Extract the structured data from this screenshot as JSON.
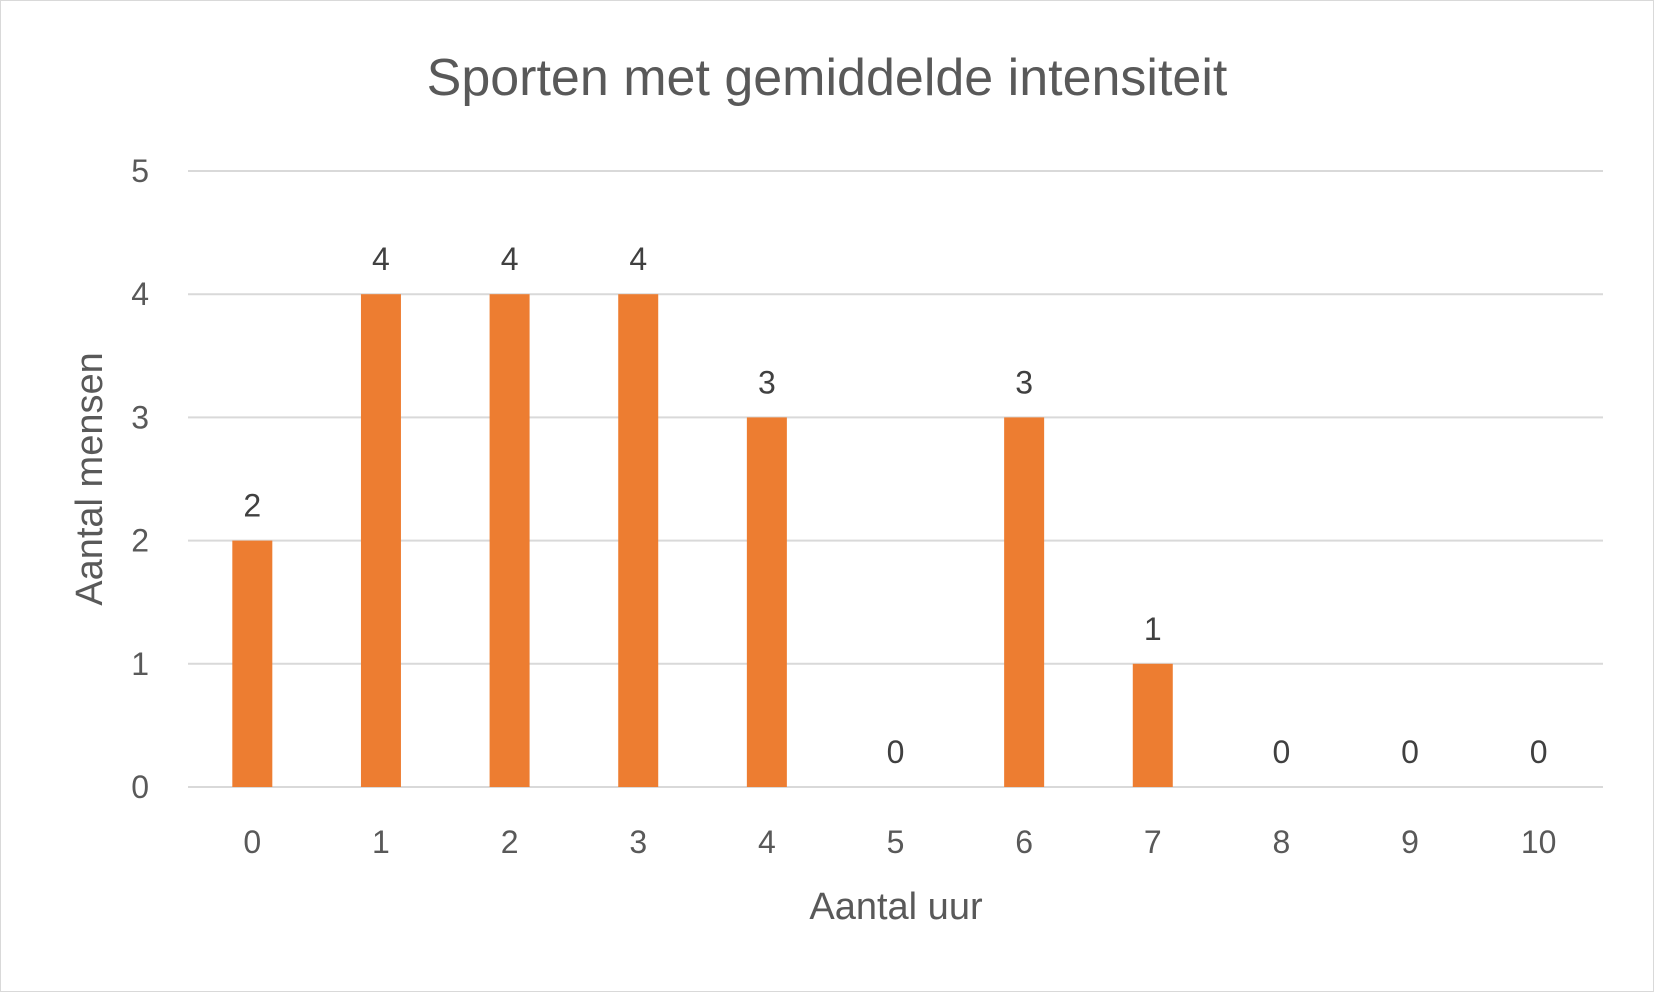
{
  "chart_data": {
    "type": "bar",
    "title": "Sporten met gemiddelde intensiteit",
    "xlabel": "Aantal uur",
    "ylabel": "Aantal mensen",
    "categories": [
      "0",
      "1",
      "2",
      "3",
      "4",
      "5",
      "6",
      "7",
      "8",
      "9",
      "10"
    ],
    "values": [
      2,
      4,
      4,
      4,
      3,
      0,
      3,
      1,
      0,
      0,
      0
    ],
    "ylim": [
      0,
      5
    ],
    "yticks": [
      "0",
      "1",
      "2",
      "3",
      "4",
      "5"
    ],
    "grid": true,
    "legend": "none",
    "data_labels": true,
    "bar_color": "#ED7D31",
    "grid_color": "#d9d9d9"
  }
}
